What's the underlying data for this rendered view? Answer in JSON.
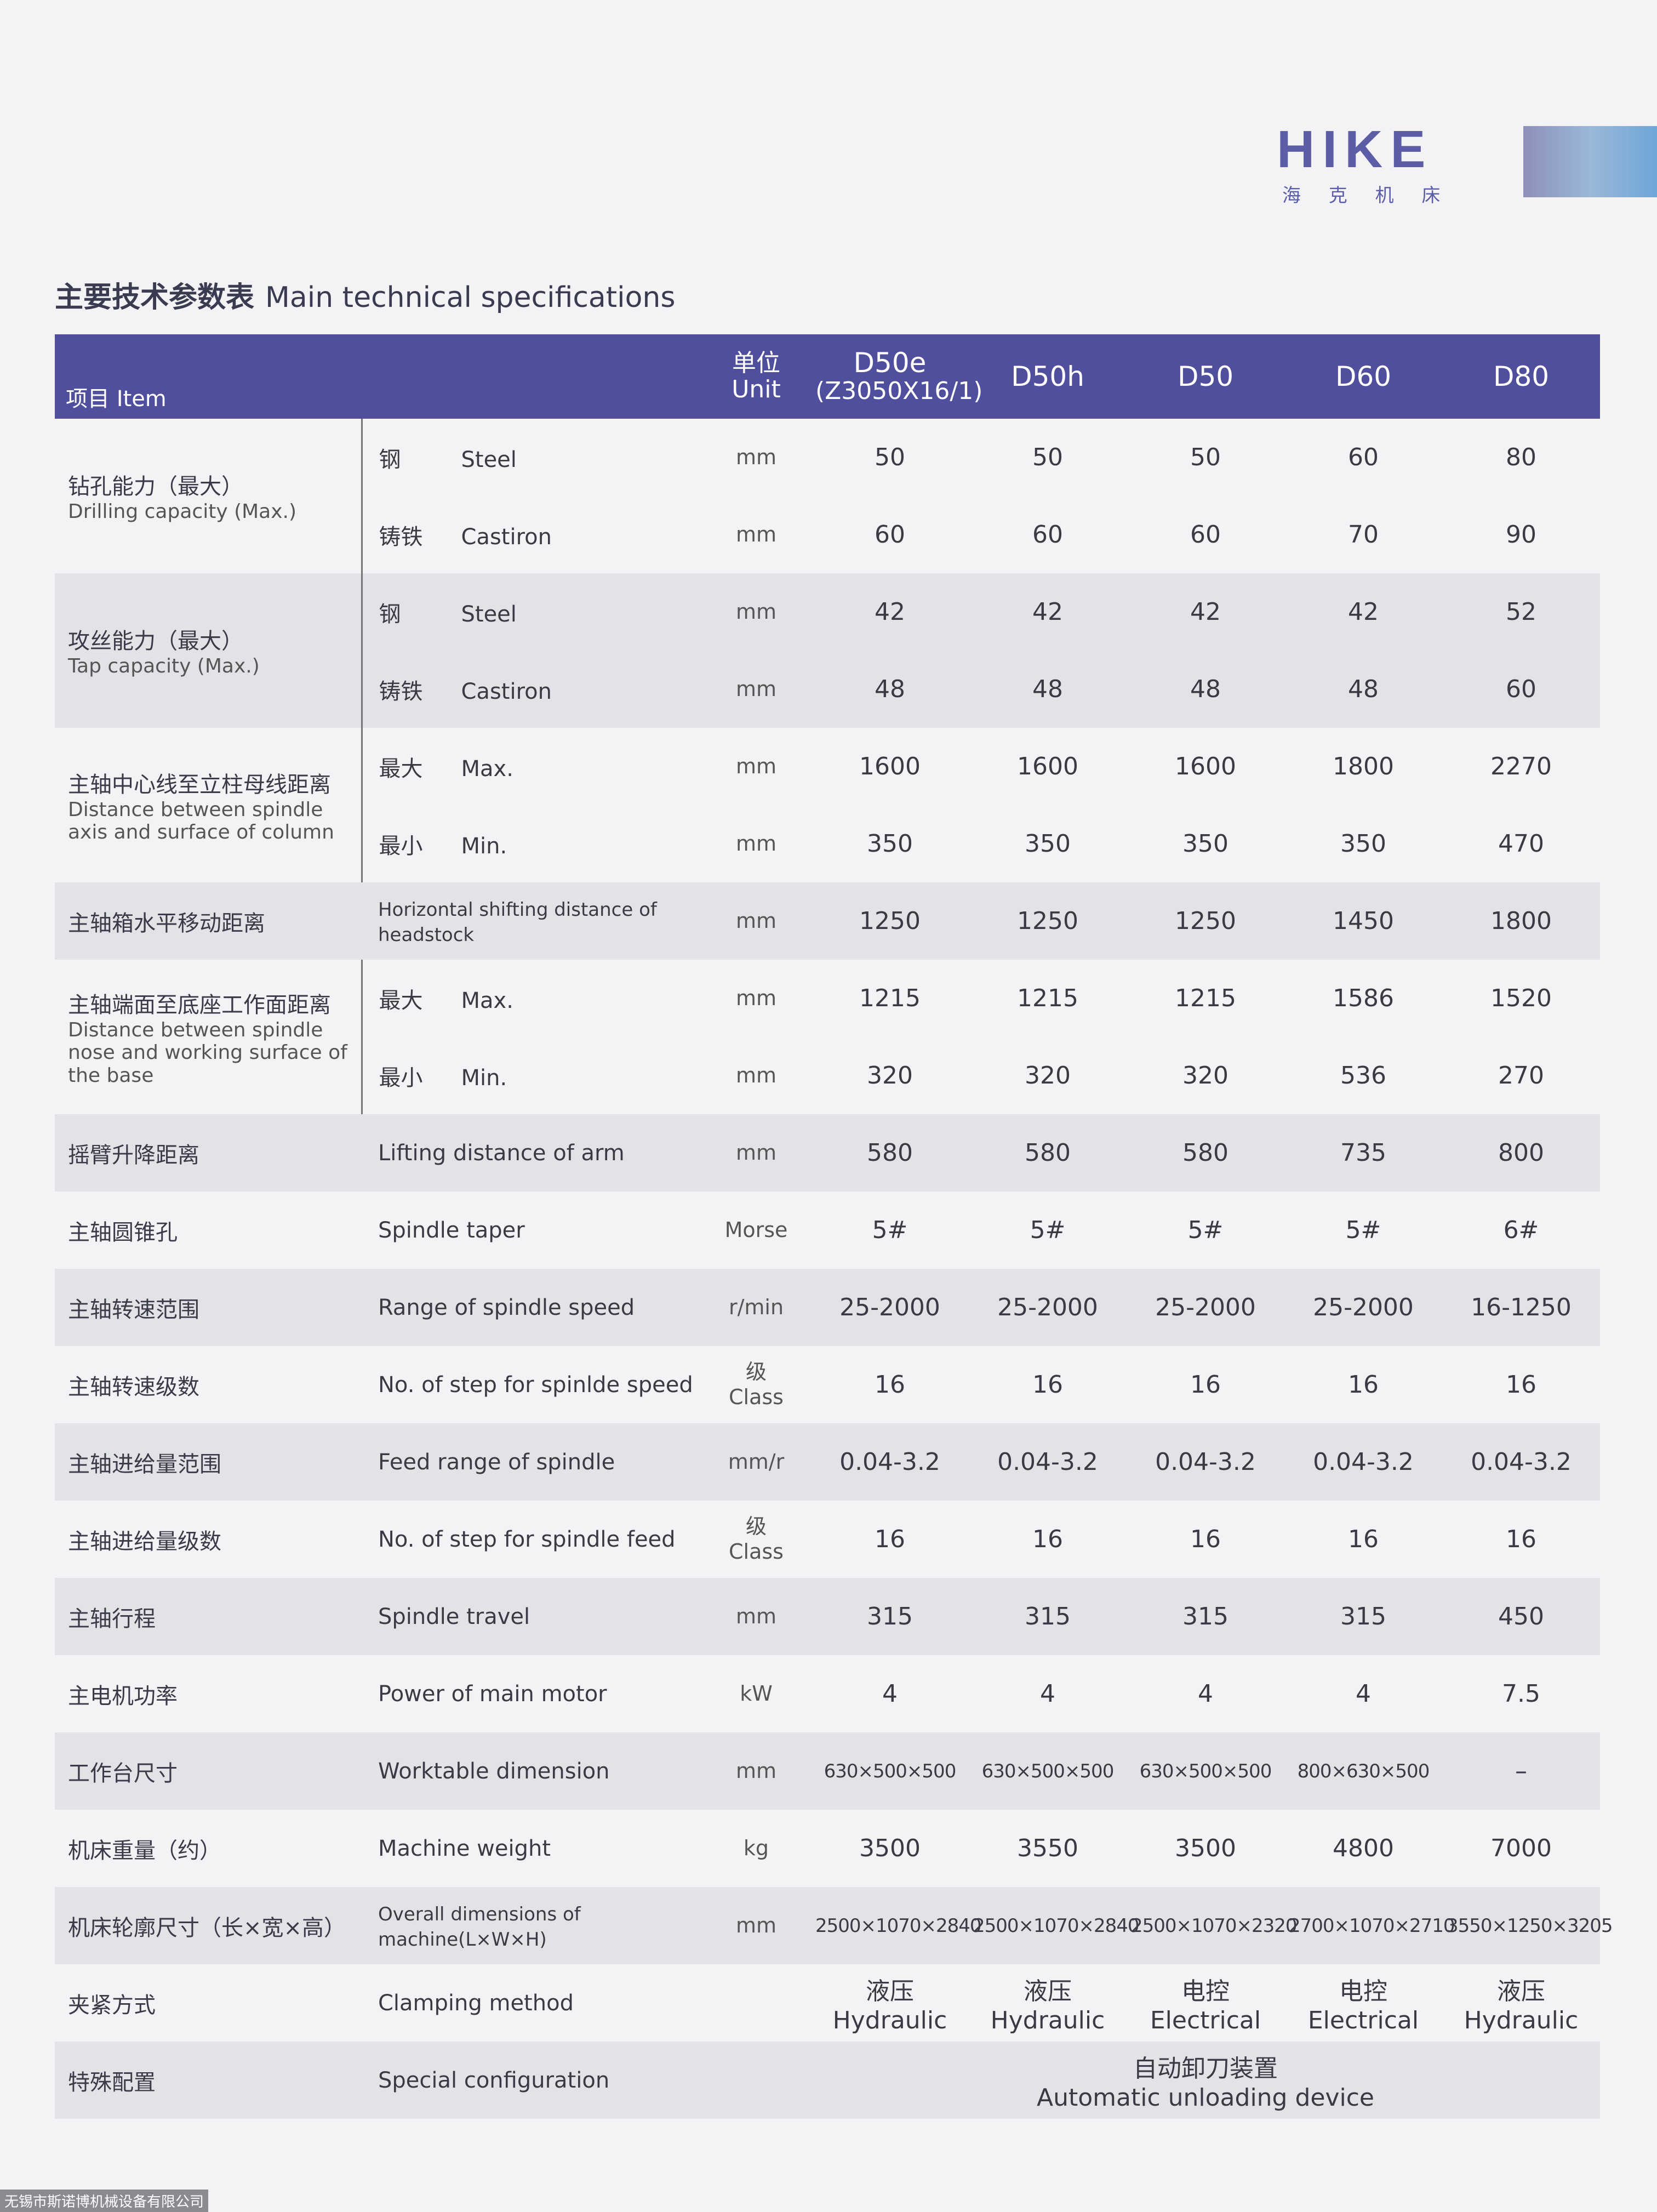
{
  "logo": {
    "brand": "HIKE",
    "subtitle": "海 克 机 床"
  },
  "title": {
    "cn": "主要技术参数表",
    "en": "Main technical specifications"
  },
  "table": {
    "header": {
      "item_cn": "项目",
      "item_en": "Item",
      "unit_cn": "单位",
      "unit_en": "Unit",
      "models": [
        {
          "name": "D50e",
          "note": "(Z3050X16/1)"
        },
        {
          "name": "D50h"
        },
        {
          "name": "D50"
        },
        {
          "name": "D60"
        },
        {
          "name": "D80"
        }
      ]
    },
    "groups": [
      {
        "label_cn": "钻孔能力（最大）",
        "label_en": "Drilling capacity (Max.)",
        "rows": [
          {
            "sub_cn": "钢",
            "sub_en": "Steel",
            "unit": "mm",
            "values": [
              "50",
              "50",
              "50",
              "60",
              "80"
            ]
          },
          {
            "sub_cn": "铸铁",
            "sub_en": "Castiron",
            "unit": "mm",
            "values": [
              "60",
              "60",
              "60",
              "70",
              "90"
            ]
          }
        ]
      },
      {
        "label_cn": "攻丝能力（最大）",
        "label_en": "Tap capacity (Max.)",
        "rows": [
          {
            "sub_cn": "钢",
            "sub_en": "Steel",
            "unit": "mm",
            "values": [
              "42",
              "42",
              "42",
              "42",
              "52"
            ]
          },
          {
            "sub_cn": "铸铁",
            "sub_en": "Castiron",
            "unit": "mm",
            "values": [
              "48",
              "48",
              "48",
              "48",
              "60"
            ]
          }
        ]
      },
      {
        "label_cn": "主轴中心线至立柱母线距离",
        "label_en": "Distance between spindle axis and surface of column",
        "rows": [
          {
            "sub_cn": "最大",
            "sub_en": "Max.",
            "unit": "mm",
            "values": [
              "1600",
              "1600",
              "1600",
              "1800",
              "2270"
            ]
          },
          {
            "sub_cn": "最小",
            "sub_en": "Min.",
            "unit": "mm",
            "values": [
              "350",
              "350",
              "350",
              "350",
              "470"
            ]
          }
        ]
      },
      {
        "label_cn": "主轴箱水平移动距离",
        "rows": [
          {
            "sub_en": "Horizontal shifting distance of headstock",
            "unit": "mm",
            "values": [
              "1250",
              "1250",
              "1250",
              "1450",
              "1800"
            ]
          }
        ]
      },
      {
        "label_cn": "主轴端面至底座工作面距离",
        "label_en": "Distance between spindle nose and working surface of the base",
        "rows": [
          {
            "sub_cn": "最大",
            "sub_en": "Max.",
            "unit": "mm",
            "values": [
              "1215",
              "1215",
              "1215",
              "1586",
              "1520"
            ]
          },
          {
            "sub_cn": "最小",
            "sub_en": "Min.",
            "unit": "mm",
            "values": [
              "320",
              "320",
              "320",
              "536",
              "270"
            ]
          }
        ]
      },
      {
        "label_cn": "摇臂升降距离",
        "rows": [
          {
            "sub_en": "Lifting distance of arm",
            "unit": "mm",
            "values": [
              "580",
              "580",
              "580",
              "735",
              "800"
            ]
          }
        ]
      },
      {
        "label_cn": "主轴圆锥孔",
        "rows": [
          {
            "sub_en": "Spindle taper",
            "unit": "Morse",
            "values": [
              "5#",
              "5#",
              "5#",
              "5#",
              "6#"
            ]
          }
        ]
      },
      {
        "label_cn": "主轴转速范围",
        "rows": [
          {
            "sub_en": "Range of spindle speed",
            "unit": "r/min",
            "values": [
              "25-2000",
              "25-2000",
              "25-2000",
              "25-2000",
              "16-1250"
            ]
          }
        ]
      },
      {
        "label_cn": "主轴转速级数",
        "rows": [
          {
            "sub_en": "No. of step for spinlde speed",
            "unit": "级",
            "unit_en": "Class",
            "values": [
              "16",
              "16",
              "16",
              "16",
              "16"
            ]
          }
        ]
      },
      {
        "label_cn": "主轴进给量范围",
        "rows": [
          {
            "sub_en": "Feed range of spindle",
            "unit": "mm/r",
            "values": [
              "0.04-3.2",
              "0.04-3.2",
              "0.04-3.2",
              "0.04-3.2",
              "0.04-3.2"
            ]
          }
        ]
      },
      {
        "label_cn": "主轴进给量级数",
        "rows": [
          {
            "sub_en": "No. of step for spindle feed",
            "unit": "级",
            "unit_en": "Class",
            "values": [
              "16",
              "16",
              "16",
              "16",
              "16"
            ]
          }
        ]
      },
      {
        "label_cn": "主轴行程",
        "rows": [
          {
            "sub_en": "Spindle travel",
            "unit": "mm",
            "values": [
              "315",
              "315",
              "315",
              "315",
              "450"
            ]
          }
        ]
      },
      {
        "label_cn": "主电机功率",
        "rows": [
          {
            "sub_en": "Power of main motor",
            "unit": "kW",
            "values": [
              "4",
              "4",
              "4",
              "4",
              "7.5"
            ]
          }
        ]
      },
      {
        "label_cn": "工作台尺寸",
        "rows": [
          {
            "sub_en": "Worktable dimension",
            "unit": "mm",
            "values": [
              "630×500×500",
              "630×500×500",
              "630×500×500",
              "800×630×500",
              "–"
            ]
          }
        ]
      },
      {
        "label_cn": "机床重量（约）",
        "rows": [
          {
            "sub_en": "Machine weight",
            "unit": "kg",
            "values": [
              "3500",
              "3550",
              "3500",
              "4800",
              "7000"
            ]
          }
        ]
      },
      {
        "label_cn": "机床轮廓尺寸（长×宽×高）",
        "rows": [
          {
            "sub_en": "Overall dimensions of machine(L×W×H)",
            "unit": "mm",
            "values": [
              "2500×1070×2840",
              "2500×1070×2840",
              "2500×1070×2320",
              "2700×1070×2710",
              "3550×1250×3205"
            ]
          }
        ]
      },
      {
        "label_cn": "夹紧方式",
        "rows": [
          {
            "sub_en": "Clamping method",
            "values": [
              {
                "cn": "液压",
                "en": "Hydraulic"
              },
              {
                "cn": "液压",
                "en": "Hydraulic"
              },
              {
                "cn": "电控",
                "en": "Electrical"
              },
              {
                "cn": "电控",
                "en": "Electrical"
              },
              {
                "cn": "液压",
                "en": "Hydraulic"
              }
            ]
          }
        ]
      },
      {
        "label_cn": "特殊配置",
        "rows": [
          {
            "sub_en": "Special configuration",
            "span_value": {
              "cn": "自动卸刀装置",
              "en": "Automatic unloading device"
            }
          }
        ]
      }
    ]
  },
  "footer": "无锡市斯诺博机械设备有限公司"
}
